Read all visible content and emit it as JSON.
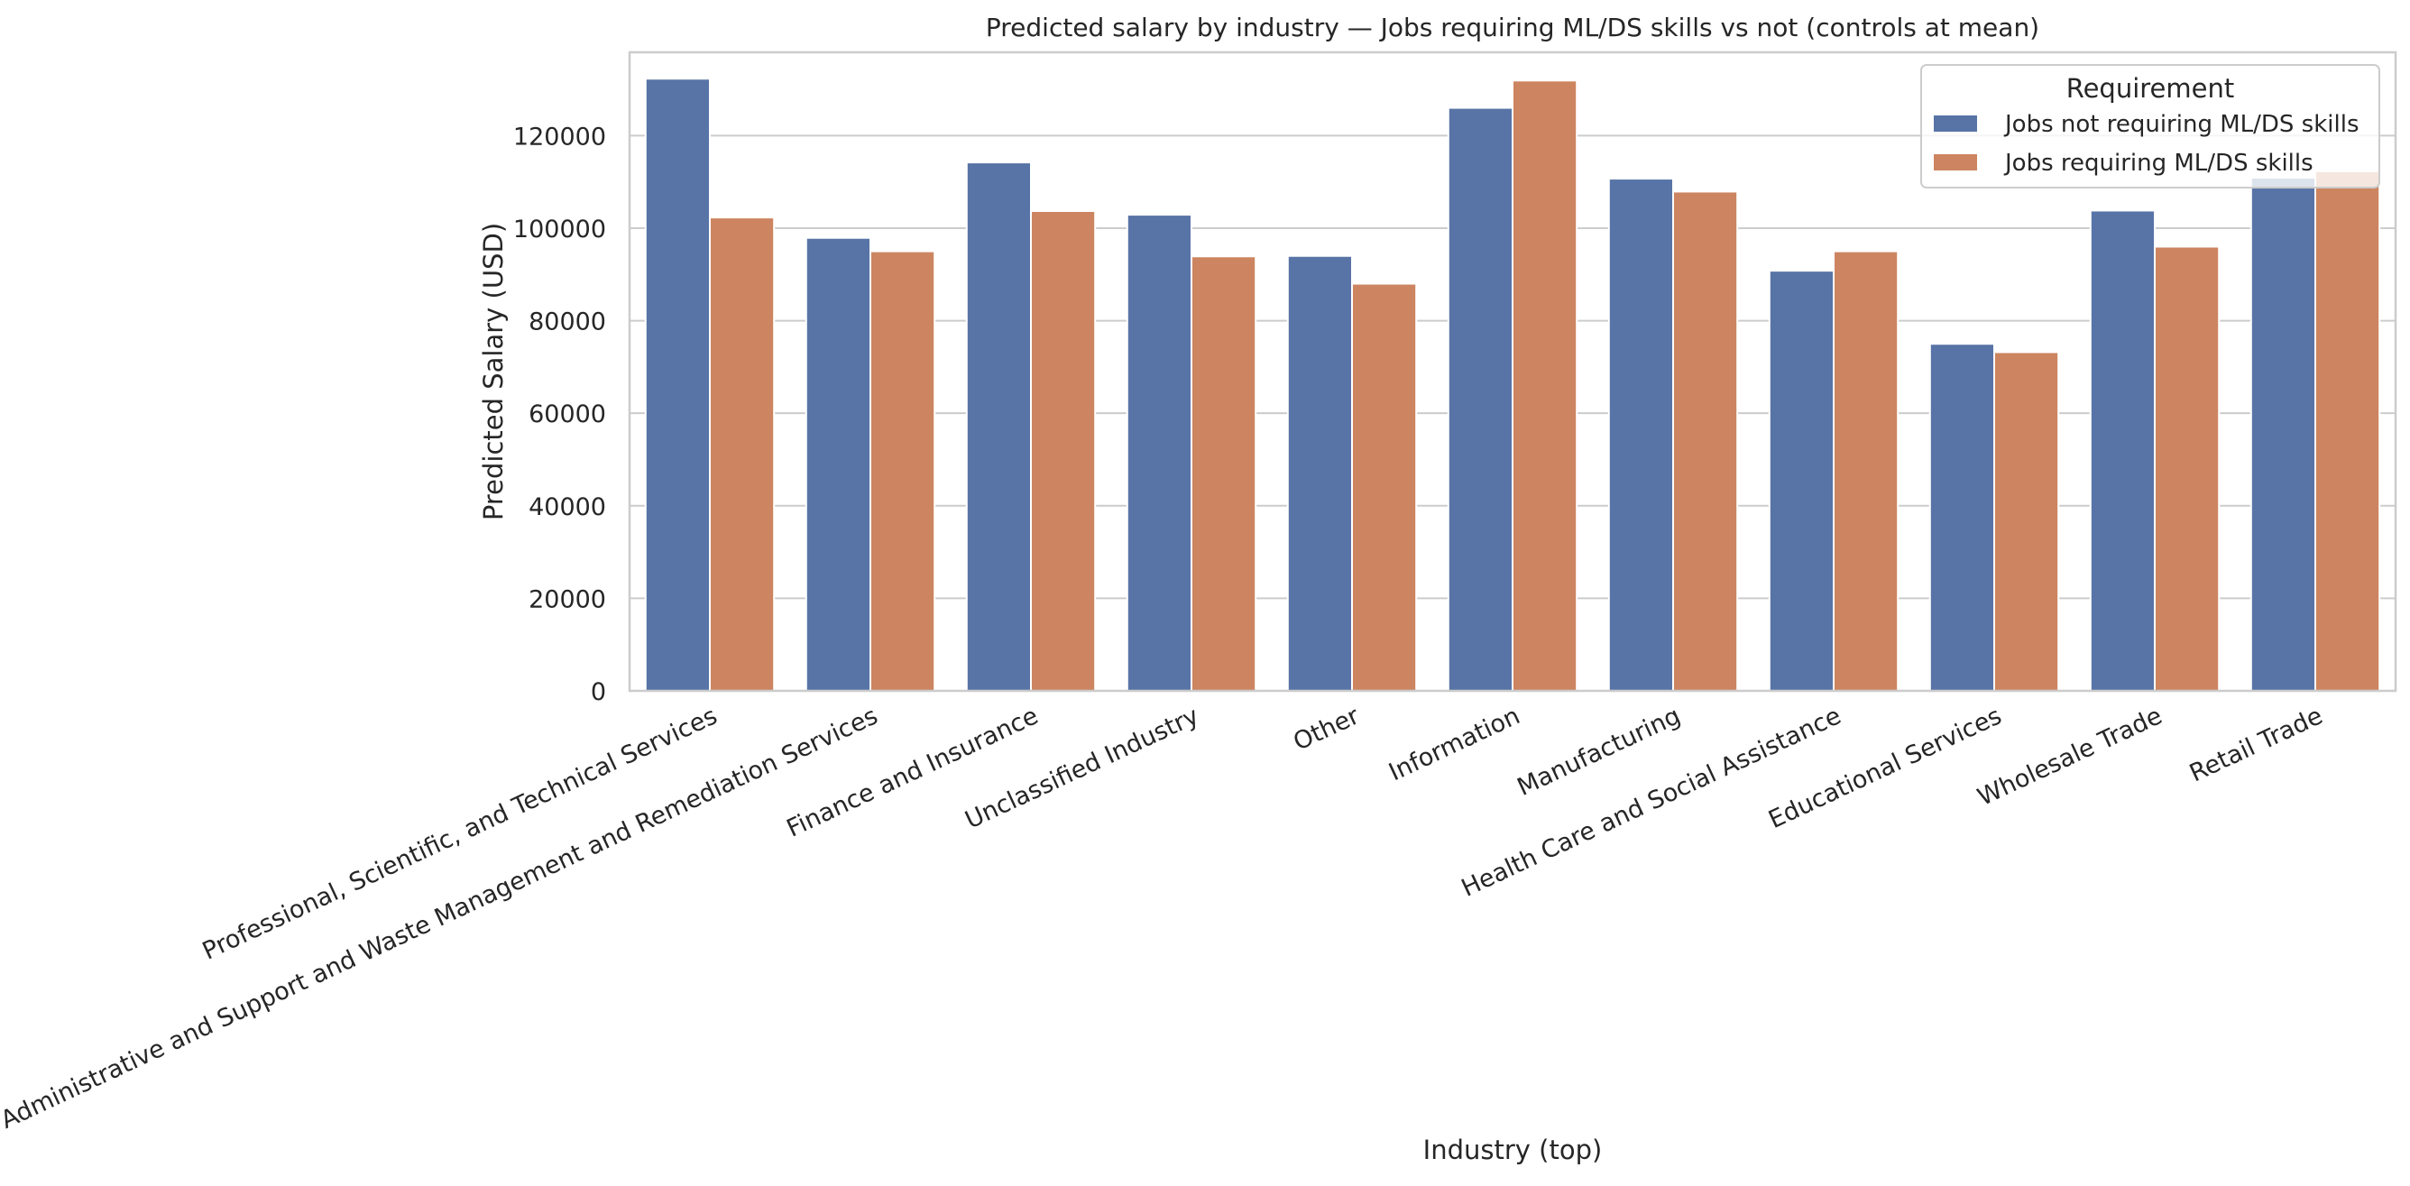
{
  "chart_data": {
    "type": "bar",
    "title": "Predicted salary by industry — Jobs requiring ML/DS skills vs not (controls at mean)",
    "xlabel": "Industry (top)",
    "ylabel": "Predicted Salary (USD)",
    "ylim": [
      0,
      138000
    ],
    "yticks": [
      0,
      20000,
      40000,
      60000,
      80000,
      100000,
      120000
    ],
    "grid": true,
    "legend": {
      "title": "Requirement",
      "placement": "top-right"
    },
    "categories": [
      "Professional, Scientific, and Technical Services",
      "Administrative and Support and Waste Management and Remediation Services",
      "Finance and Insurance",
      "Unclassified Industry",
      "Other",
      "Information",
      "Manufacturing",
      "Health Care and Social Assistance",
      "Educational Services",
      "Wholesale Trade",
      "Retail Trade"
    ],
    "series": [
      {
        "name": "Jobs not requiring ML/DS skills",
        "color": "#5874a6",
        "values": [
          132300,
          97900,
          114200,
          102900,
          94000,
          126000,
          110700,
          90800,
          75000,
          103800,
          110900
        ]
      },
      {
        "name": "Jobs requiring ML/DS skills",
        "color": "#cc8560",
        "values": [
          102300,
          95000,
          103700,
          93900,
          88000,
          131900,
          107900,
          95000,
          73200,
          96000,
          112300
        ]
      }
    ]
  }
}
